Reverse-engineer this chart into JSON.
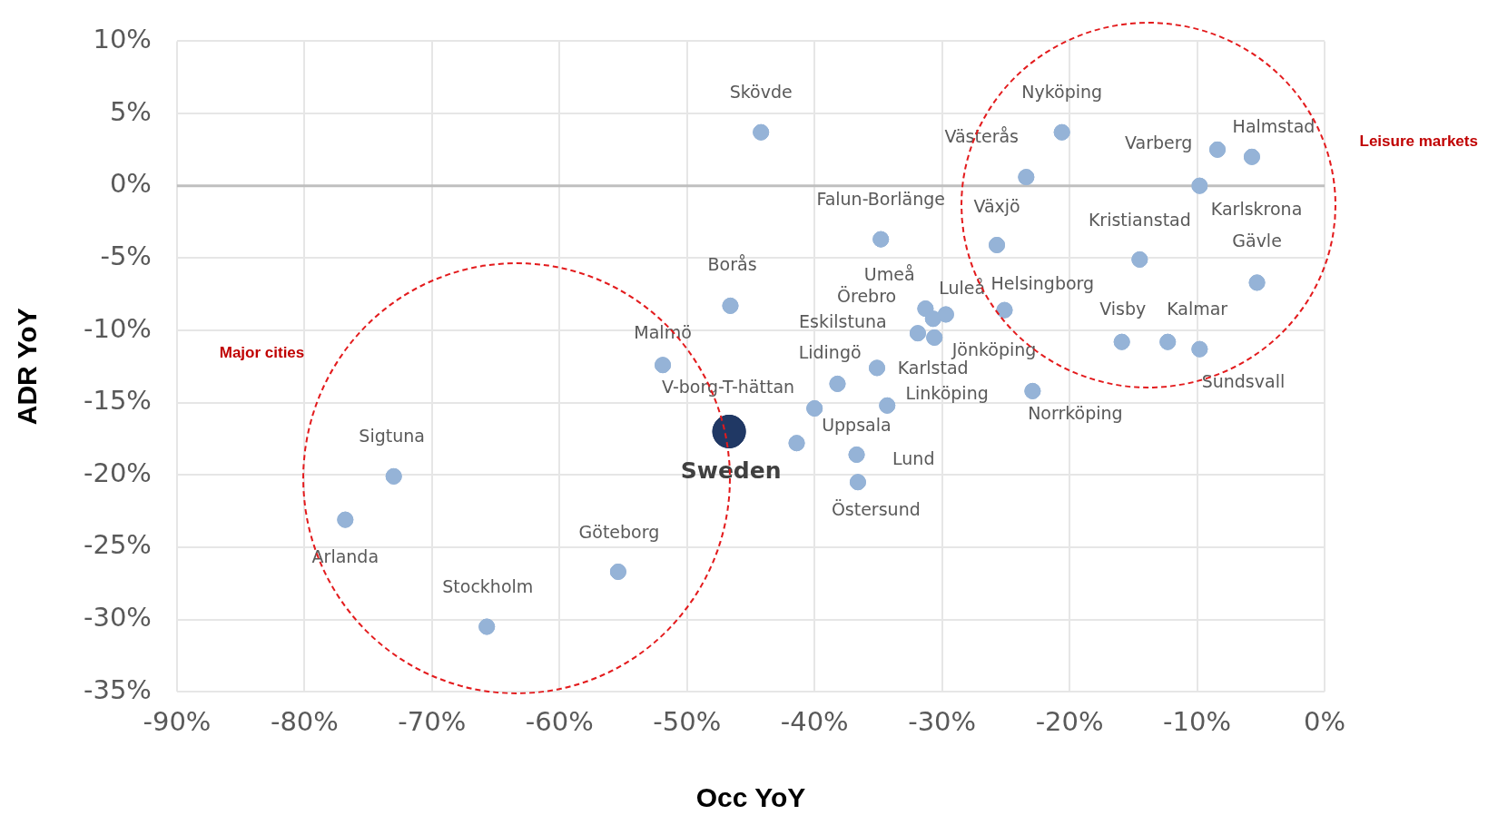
{
  "chart_data": {
    "type": "scatter",
    "xlabel": "Occ YoY",
    "ylabel": "ADR YoY",
    "xlim": [
      -90,
      0
    ],
    "ylim": [
      -35,
      10
    ],
    "xticks": [
      {
        "value": -90,
        "label": "-90%"
      },
      {
        "value": -80,
        "label": "-80%"
      },
      {
        "value": -70,
        "label": "-70%"
      },
      {
        "value": -60,
        "label": "-60%"
      },
      {
        "value": -50,
        "label": "-50%"
      },
      {
        "value": -40,
        "label": "-40%"
      },
      {
        "value": -30,
        "label": "-30%"
      },
      {
        "value": -20,
        "label": "-20%"
      },
      {
        "value": -10,
        "label": "-10%"
      },
      {
        "value": 0,
        "label": "0%"
      }
    ],
    "yticks": [
      {
        "value": 10,
        "label": "10%"
      },
      {
        "value": 5,
        "label": "5%"
      },
      {
        "value": 0,
        "label": "0%"
      },
      {
        "value": -5,
        "label": "-5%"
      },
      {
        "value": -10,
        "label": "-10%"
      },
      {
        "value": -15,
        "label": "-15%"
      },
      {
        "value": -20,
        "label": "-20%"
      },
      {
        "value": -25,
        "label": "-25%"
      },
      {
        "value": -30,
        "label": "-30%"
      },
      {
        "value": -35,
        "label": "-35%"
      }
    ],
    "grid": true,
    "legend": false,
    "marker": "circle",
    "ref_lines": [
      {
        "axis": "y",
        "value": 0,
        "color": "#bfbfbf"
      }
    ],
    "series": [
      {
        "color": "#95b3d7",
        "x": [
          -44.2,
          -20.6,
          -5.7,
          -8.4,
          -23.4,
          -9.8,
          -34.8,
          -25.7,
          -14.5,
          -5.3,
          -46.6,
          -31.3,
          -30.7,
          -29.7,
          -25.1,
          -31.9,
          -30.6,
          -15.9,
          -12.3,
          -9.8,
          -51.9,
          -35.1,
          -38.2,
          -22.9,
          -34.3,
          -40.0,
          -41.4,
          -36.7,
          -36.6,
          -73.0,
          -76.8,
          -55.4,
          -65.7
        ],
        "values": [
          3.7,
          3.7,
          2.0,
          2.5,
          0.6,
          0,
          -3.7,
          -4.1,
          -5.1,
          -6.7,
          -8.3,
          -8.5,
          -9.2,
          -8.9,
          -8.6,
          -10.2,
          -10.5,
          -10.8,
          -10.8,
          -11.3,
          -12.4,
          -12.6,
          -13.7,
          -14.2,
          -15.2,
          -15.4,
          -17.8,
          -18.6,
          -20.5,
          -20.1,
          -23.1,
          -26.7,
          -30.5
        ]
      },
      {
        "color": "#203864",
        "x": [
          -46.7
        ],
        "values": [
          -17.0
        ]
      }
    ],
    "annotations": [
      {
        "text": "Skövde",
        "x": -44.2,
        "y": 3.7
      },
      {
        "text": "Nyköping",
        "x": -20.6,
        "y": 3.7
      },
      {
        "text": "Halmstad",
        "x": -5.7,
        "y": 2.0
      },
      {
        "text": "Varberg",
        "x": -8.4,
        "y": 2.5
      },
      {
        "text": "Västerås",
        "x": -23.4,
        "y": 0.6
      },
      {
        "text": "Karlskrona",
        "x": -9.8,
        "y": 0
      },
      {
        "text": "Falun-Borlänge",
        "x": -34.8,
        "y": -3.7
      },
      {
        "text": "Växjö",
        "x": -25.7,
        "y": -4.1
      },
      {
        "text": "Kristianstad",
        "x": -14.5,
        "y": -5.1
      },
      {
        "text": "Gävle",
        "x": -5.3,
        "y": -6.7
      },
      {
        "text": "Borås",
        "x": -46.6,
        "y": -8.3
      },
      {
        "text": "Umeå",
        "x": -31.3,
        "y": -8.5
      },
      {
        "text": "Örebro",
        "x": -30.7,
        "y": -9.2
      },
      {
        "text": "Luleå",
        "x": -29.7,
        "y": -8.9
      },
      {
        "text": "Helsingborg",
        "x": -25.1,
        "y": -8.6
      },
      {
        "text": "Eskilstuna",
        "x": -31.9,
        "y": -10.2
      },
      {
        "text": "Jönköping",
        "x": -30.6,
        "y": -10.5
      },
      {
        "text": "Visby",
        "x": -15.9,
        "y": -10.8
      },
      {
        "text": "Kalmar",
        "x": -12.3,
        "y": -10.8
      },
      {
        "text": "Sundsvall",
        "x": -9.8,
        "y": -11.3
      },
      {
        "text": "Malmö",
        "x": -51.9,
        "y": -12.4
      },
      {
        "text": "Karlstad",
        "x": -35.1,
        "y": -12.6
      },
      {
        "text": "Lidingö",
        "x": -38.2,
        "y": -13.7
      },
      {
        "text": "Norrköping",
        "x": -22.9,
        "y": -14.2
      },
      {
        "text": "Linköping",
        "x": -34.3,
        "y": -15.2
      },
      {
        "text": "V-borg-T-hättan",
        "x": -40.0,
        "y": -15.4
      },
      {
        "text": "Uppsala",
        "x": -41.4,
        "y": -17.8
      },
      {
        "text": "Lund",
        "x": -36.7,
        "y": -18.6
      },
      {
        "text": "Östersund",
        "x": -36.6,
        "y": -20.5
      },
      {
        "text": "Sigtuna",
        "x": -73.0,
        "y": -20.1
      },
      {
        "text": "Arlanda",
        "x": -76.8,
        "y": -23.1
      },
      {
        "text": "Göteborg",
        "x": -55.4,
        "y": -26.7
      },
      {
        "text": "Stockholm",
        "x": -65.7,
        "y": -30.5
      },
      {
        "text": "Sweden",
        "x": -46.7,
        "y": -17.0
      },
      "Major cities",
      "Leisure markets"
    ]
  }
}
